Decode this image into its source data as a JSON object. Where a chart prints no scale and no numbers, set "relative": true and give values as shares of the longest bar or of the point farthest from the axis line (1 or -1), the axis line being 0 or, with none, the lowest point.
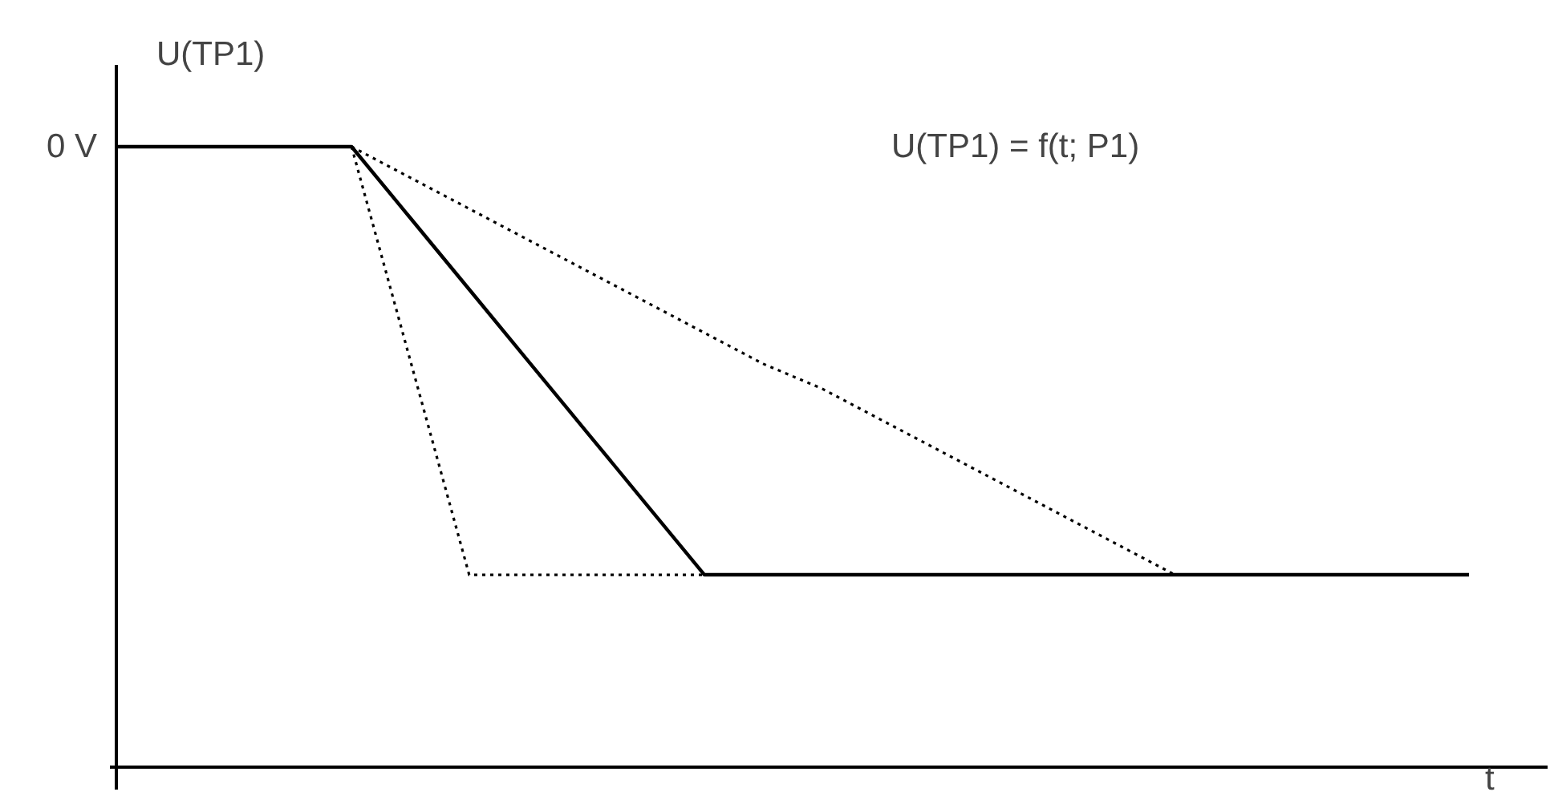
{
  "chart_data": {
    "type": "line",
    "relative": true,
    "ylabel": "U(TP1)",
    "xlabel": "t",
    "annotations": [
      "0 V",
      "U(TP1) = f(t; P1)"
    ],
    "categories": [
      null,
      null,
      null,
      null,
      null,
      null,
      null,
      null,
      null,
      null,
      null,
      null,
      null,
      null,
      null,
      null,
      null,
      null,
      null,
      null,
      null,
      null,
      null,
      null
    ],
    "series": [
      {
        "color": "#000000",
        "line_style": "solid",
        "values": [
          1,
          1,
          1,
          1,
          1,
          0.885,
          0.77,
          0.655,
          0.54,
          0.425,
          0.31,
          0.31,
          0.31,
          0.31,
          0.31,
          0.31,
          0.31,
          0.31,
          0.31,
          0.31,
          0.31,
          0.31,
          0.31,
          0.31
        ]
      },
      {
        "color": "#000000",
        "line_style": "dotted",
        "values": [
          null,
          null,
          null,
          null,
          1,
          0.655,
          0.31,
          0.31,
          0.31,
          0.31,
          0.31,
          null,
          null,
          null,
          null,
          null,
          null,
          null,
          null,
          null,
          null,
          null,
          null,
          null
        ]
      },
      {
        "color": "#000000",
        "line_style": "dotted",
        "values": [
          null,
          null,
          null,
          null,
          1,
          0.95,
          0.9,
          0.85,
          0.8,
          0.75,
          0.7,
          0.65,
          0.61,
          0.56,
          0.51,
          0.46,
          0.41,
          0.36,
          0.31,
          null,
          null,
          null,
          null,
          null
        ]
      }
    ]
  }
}
